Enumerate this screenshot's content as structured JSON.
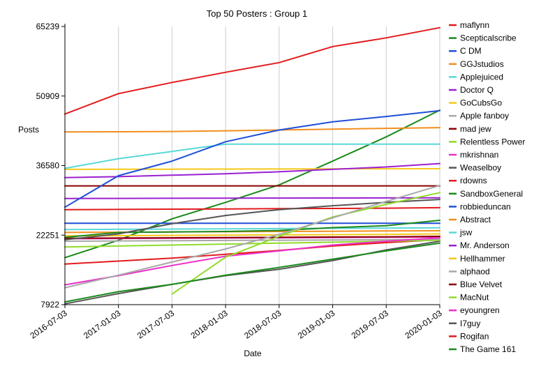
{
  "chart_data": {
    "type": "line",
    "title": "Top 50 Posters : Group 1",
    "xlabel": "Date",
    "ylabel": "Posts",
    "x": [
      "2016-07-03",
      "2017-01-03",
      "2017-07-03",
      "2018-01-03",
      "2018-07-03",
      "2019-01-03",
      "2019-07-03",
      "2020-01-03"
    ],
    "y_ticks": [
      7922,
      22251,
      36580,
      50909,
      65239
    ],
    "ylim": [
      7922,
      65239
    ],
    "grid": "vertical",
    "legend_position": "right",
    "series": [
      {
        "name": "maflynn",
        "color": "#e31a1c",
        "values": [
          47200,
          51400,
          53700,
          55800,
          57800,
          61100,
          62900,
          65000
        ]
      },
      {
        "name": "Scepticalscribe",
        "color": "#1a8a1a",
        "values": [
          8500,
          10600,
          12100,
          14000,
          15600,
          17300,
          19000,
          20600
        ]
      },
      {
        "name": "C DM",
        "color": "#1f4fd8",
        "values": [
          28000,
          34500,
          37500,
          41500,
          43900,
          45600,
          46700,
          47900
        ]
      },
      {
        "name": "GGJstudios",
        "color": "#f28e1e",
        "values": [
          43500,
          43550,
          43600,
          43750,
          43900,
          44100,
          44250,
          44400
        ]
      },
      {
        "name": "Applejuiced",
        "color": "#5ad8d8",
        "values": [
          36000,
          38000,
          39500,
          41000,
          41000,
          41000,
          41000,
          41000
        ]
      },
      {
        "name": "Doctor Q",
        "color": "#9b1fd0",
        "values": [
          34100,
          34300,
          34600,
          34900,
          35300,
          35800,
          36300,
          37000
        ]
      },
      {
        "name": "GoCubsGo",
        "color": "#f5c818",
        "values": [
          35800,
          35820,
          35840,
          35860,
          35880,
          35900,
          35920,
          35940
        ]
      },
      {
        "name": "Apple fanboy",
        "color": "#a8a8a8",
        "values": [
          11400,
          14000,
          16700,
          19400,
          22400,
          25800,
          29200,
          32500
        ]
      },
      {
        "name": "mad jew",
        "color": "#8b0000",
        "values": [
          32400,
          32400,
          32400,
          32400,
          32400,
          32400,
          32400,
          32400
        ]
      },
      {
        "name": "Relentless Power",
        "color": "#8fdc2a",
        "values": [
          null,
          null,
          10100,
          17700,
          22000,
          26000,
          28600,
          31000
        ]
      },
      {
        "name": "mkrishnan",
        "color": "#ec30c8",
        "values": [
          12000,
          13900,
          16000,
          17900,
          19000,
          20200,
          21000,
          21700
        ]
      },
      {
        "name": "Weaselboy",
        "color": "#555555",
        "values": [
          21300,
          22500,
          24600,
          26300,
          27500,
          28300,
          29000,
          29600
        ]
      },
      {
        "name": "rdowns",
        "color": "#e31a1c",
        "values": [
          27500,
          27550,
          27600,
          27650,
          27700,
          27750,
          27800,
          27900
        ]
      },
      {
        "name": "SandboxGeneral",
        "color": "#1a8a1a",
        "values": [
          21800,
          22800,
          22900,
          23000,
          23200,
          23800,
          24200,
          25300
        ]
      },
      {
        "name": "robbieduncan",
        "color": "#1f4fd8",
        "values": [
          24700,
          24700,
          24700,
          24700,
          24700,
          24700,
          24700,
          24700
        ]
      },
      {
        "name": "Abstract",
        "color": "#f28e1e",
        "values": [
          22800,
          22850,
          22900,
          22950,
          23000,
          23050,
          23100,
          23150
        ]
      },
      {
        "name": "jsw",
        "color": "#5ad8d8",
        "values": [
          23400,
          23450,
          23500,
          23550,
          23600,
          23650,
          23700,
          23750
        ]
      },
      {
        "name": "Mr. Anderson",
        "color": "#9b1fd0",
        "values": [
          29800,
          29820,
          29840,
          29860,
          29880,
          29900,
          29920,
          29940
        ]
      },
      {
        "name": "Hellhammer",
        "color": "#f5c818",
        "values": [
          22100,
          22150,
          22200,
          22250,
          22300,
          22350,
          22400,
          22500
        ]
      },
      {
        "name": "alphaod",
        "color": "#a8a8a8",
        "values": [
          21000,
          21050,
          21100,
          21150,
          21200,
          21250,
          21300,
          21400
        ]
      },
      {
        "name": "Blue Velvet",
        "color": "#8b0000",
        "values": [
          21600,
          21650,
          21700,
          21750,
          21800,
          21850,
          21900,
          22000
        ]
      },
      {
        "name": "MacNut",
        "color": "#8fdc2a",
        "values": [
          19800,
          20000,
          20200,
          20400,
          20600,
          20800,
          21000,
          21200
        ]
      },
      {
        "name": "eyoungren",
        "color": "#ec30c8",
        "values": [
          21500,
          21550,
          21600,
          21650,
          21700,
          21750,
          21800,
          21850
        ]
      },
      {
        "name": "I7guy",
        "color": "#555555",
        "values": [
          8100,
          10200,
          12100,
          13900,
          15200,
          17000,
          19200,
          21000
        ]
      },
      {
        "name": "Rogifan",
        "color": "#e31a1c",
        "values": [
          16300,
          16900,
          17500,
          18300,
          19100,
          20000,
          20700,
          21300
        ]
      },
      {
        "name": "The Game 161",
        "color": "#1a8a1a",
        "values": [
          17600,
          21200,
          25600,
          29000,
          32600,
          37500,
          42500,
          48000
        ]
      }
    ]
  }
}
